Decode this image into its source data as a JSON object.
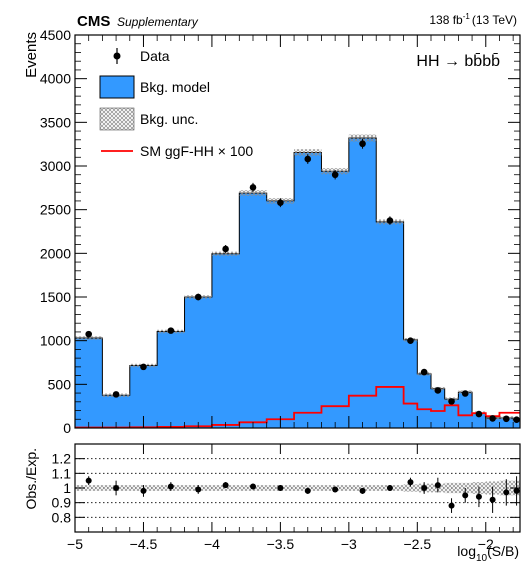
{
  "header": {
    "experiment": "CMS",
    "tag": "Supplementary",
    "lumi": "138 fb",
    "lumi_exp": "-1",
    "energy": "(13 TeV)"
  },
  "process_label": "HH → bb̄bb̄",
  "legend": [
    {
      "key": "data",
      "label": "Data"
    },
    {
      "key": "bkg",
      "label": "Bkg. model"
    },
    {
      "key": "unc",
      "label": "Bkg. unc."
    },
    {
      "key": "sig",
      "label": "SM ggF-HH × 100"
    }
  ],
  "colors": {
    "bkg": "#3399ff",
    "signal": "#ff0000",
    "data": "#000000",
    "unc": "#9a9a9a"
  },
  "chart_data": [
    {
      "type": "histogram",
      "ylabel": "Events",
      "ylim": [
        0,
        4500
      ],
      "xlim": [
        -5,
        -1.75
      ],
      "x_ticks": [
        -5,
        -4.5,
        -4,
        -3.5,
        -3,
        -2.5,
        -2
      ],
      "y_ticks": [
        0,
        500,
        1000,
        1500,
        2000,
        2500,
        3000,
        3500,
        4000,
        4500
      ],
      "bin_edges": [
        -5.0,
        -4.8,
        -4.6,
        -4.4,
        -4.2,
        -4.0,
        -3.8,
        -3.6,
        -3.4,
        -3.2,
        -3.0,
        -2.8,
        -2.6,
        -2.5,
        -2.4,
        -2.3,
        -2.2,
        -2.1,
        -2.0,
        -1.9,
        -1.8,
        -1.75
      ],
      "series": [
        {
          "name": "Bkg. model",
          "values": [
            1030,
            375,
            715,
            1105,
            1500,
            1995,
            2690,
            2600,
            3155,
            2940,
            3320,
            2360,
            1010,
            620,
            450,
            330,
            410,
            170,
            115,
            115,
            95
          ]
        },
        {
          "name": "SM ggF-HH × 100",
          "values": [
            5,
            5,
            8,
            12,
            20,
            35,
            65,
            100,
            175,
            250,
            370,
            470,
            280,
            215,
            195,
            260,
            145,
            170,
            135,
            175,
            175
          ]
        },
        {
          "name": "Data",
          "values": [
            1075,
            385,
            700,
            1115,
            1500,
            2050,
            2755,
            2580,
            3080,
            2900,
            3255,
            2375,
            1000,
            640,
            430,
            305,
            395,
            160,
            110,
            105,
            95
          ]
        }
      ]
    },
    {
      "type": "ratio",
      "ylabel": "Obs./Exp.",
      "xlabel": "log",
      "xlabel_sub": "10",
      "xlabel_tail": "(S/B)",
      "ylim": [
        0.7,
        1.3
      ],
      "y_ticks": [
        0.8,
        0.9,
        1,
        1.1,
        1.2
      ],
      "y_tick_labels": [
        "0.8",
        "0.9",
        "1",
        "1.1",
        "1.2"
      ],
      "x_ticks": [
        -5,
        -4.5,
        -4,
        -3.5,
        -3,
        -2.5,
        -2
      ],
      "x_tick_labels": [
        "−5",
        "−4.5",
        "−4",
        "−3.5",
        "−3",
        "−2.5",
        "−2"
      ],
      "x": [
        -4.9,
        -4.7,
        -4.5,
        -4.3,
        -4.1,
        -3.9,
        -3.7,
        -3.5,
        -3.3,
        -3.1,
        -2.9,
        -2.7,
        -2.55,
        -2.45,
        -2.35,
        -2.25,
        -2.15,
        -2.05,
        -1.95,
        -1.85,
        -1.775
      ],
      "values": [
        1.05,
        1.0,
        0.98,
        1.01,
        0.99,
        1.02,
        1.01,
        1.0,
        0.98,
        0.99,
        0.98,
        1.0,
        1.04,
        1.0,
        1.02,
        0.88,
        0.95,
        0.94,
        0.92,
        0.97,
        0.98
      ],
      "errors": [
        0.03,
        0.05,
        0.04,
        0.03,
        0.03,
        0.02,
        0.02,
        0.02,
        0.02,
        0.02,
        0.02,
        0.02,
        0.03,
        0.04,
        0.05,
        0.05,
        0.05,
        0.07,
        0.09,
        0.09,
        0.1
      ],
      "band": [
        0.02,
        0.02,
        0.02,
        0.02,
        0.02,
        0.02,
        0.02,
        0.02,
        0.02,
        0.02,
        0.02,
        0.02,
        0.025,
        0.03,
        0.03,
        0.035,
        0.035,
        0.04,
        0.045,
        0.05,
        0.05
      ]
    }
  ]
}
